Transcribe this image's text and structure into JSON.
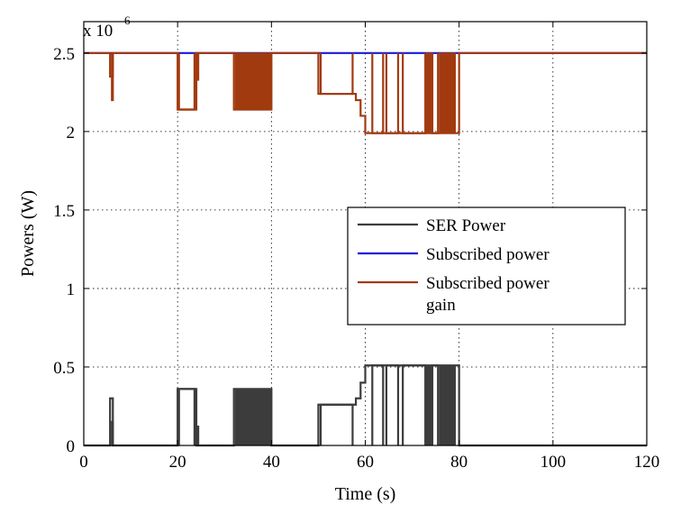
{
  "chart_data": {
    "type": "line",
    "title": "",
    "xlabel": "Time (s)",
    "ylabel": "Powers (W)",
    "y_multiplier": {
      "base": "x 10",
      "exponent": "6"
    },
    "xlim": [
      0,
      120
    ],
    "ylim": [
      0,
      2.7
    ],
    "x_ticks": [
      0,
      20,
      40,
      60,
      80,
      100,
      120
    ],
    "x_tick_labels": [
      "0",
      "20",
      "40",
      "60",
      "80",
      "100",
      "120"
    ],
    "y_ticks": [
      0,
      0.5,
      1,
      1.5,
      2,
      2.5
    ],
    "y_tick_labels": [
      "0",
      "0.5",
      "1",
      "1.5",
      "2",
      "2.5"
    ],
    "grid": true,
    "legend_position": "right-middle",
    "series": [
      {
        "name": "SER Power",
        "color": "#3c3c3c",
        "x": [
          0,
          5.6,
          5.6,
          6.2,
          6.2,
          20,
          20,
          24,
          24,
          32,
          32,
          40,
          40,
          50,
          50,
          56,
          56,
          58,
          58,
          59,
          59,
          60,
          60,
          80,
          80,
          120
        ],
        "y": [
          0,
          0,
          0.3,
          0.3,
          0,
          0,
          0.36,
          0.36,
          0,
          0,
          0.36,
          0.36,
          0,
          0,
          0.26,
          0.26,
          0.26,
          0.26,
          0.3,
          0.3,
          0.4,
          0.4,
          0.51,
          0.51,
          0,
          0
        ],
        "pulses": [
          {
            "x_start": 6.0,
            "x_end": 6.2,
            "high": 0.15
          },
          {
            "x_start": 20.3,
            "x_end": 23.6,
            "high": 0.36
          },
          {
            "x_start": 24.0,
            "x_end": 24.4,
            "high": 0.12
          },
          {
            "x_start": 50.5,
            "x_end": 57.3,
            "high": 0.26
          },
          {
            "x_start": 61.5,
            "x_end": 63.8,
            "high": 0.51
          },
          {
            "x_start": 64.5,
            "x_end": 67.0,
            "high": 0.51
          },
          {
            "x_start": 68.0,
            "x_end": 72.8,
            "high": 0.51
          },
          {
            "x_start": 74.3,
            "x_end": 75.5,
            "high": 0.51
          }
        ],
        "filled_regions": [
          {
            "x_start": 32.3,
            "x_end": 40.0,
            "level": 0.36
          },
          {
            "x_start": 73.0,
            "x_end": 74.3,
            "level": 0.51
          },
          {
            "x_start": 75.8,
            "x_end": 79.2,
            "level": 0.51
          }
        ]
      },
      {
        "name": "Subscribed power",
        "color": "#1a1adc",
        "x": [
          0,
          80,
          80,
          120
        ],
        "y": [
          2.5,
          2.5,
          2.5,
          2.5
        ]
      },
      {
        "name": "Subscribed power gain",
        "color": "#a23a10",
        "x": [
          0,
          5.6,
          5.6,
          6.2,
          6.2,
          20,
          20,
          24,
          24,
          32,
          32,
          40,
          40,
          50,
          50,
          56,
          56,
          58,
          58,
          59,
          59,
          60,
          60,
          80,
          80,
          120
        ],
        "y": [
          2.5,
          2.5,
          2.35,
          2.35,
          2.5,
          2.5,
          2.14,
          2.14,
          2.5,
          2.5,
          2.14,
          2.14,
          2.5,
          2.5,
          2.24,
          2.24,
          2.24,
          2.24,
          2.2,
          2.2,
          2.1,
          2.1,
          1.99,
          1.99,
          2.5,
          2.5
        ],
        "pulses": [
          {
            "x_start": 6.0,
            "x_end": 6.2,
            "low": 2.2
          },
          {
            "x_start": 20.3,
            "x_end": 23.6,
            "low": 2.14
          },
          {
            "x_start": 24.0,
            "x_end": 24.4,
            "low": 2.33
          },
          {
            "x_start": 50.5,
            "x_end": 57.3,
            "low": 2.24
          },
          {
            "x_start": 61.5,
            "x_end": 63.8,
            "low": 1.99
          },
          {
            "x_start": 64.5,
            "x_end": 67.0,
            "low": 1.99
          },
          {
            "x_start": 68.0,
            "x_end": 72.8,
            "low": 1.99
          },
          {
            "x_start": 74.3,
            "x_end": 75.5,
            "low": 1.99
          }
        ],
        "filled_regions": [
          {
            "x_start": 32.3,
            "x_end": 40.0,
            "level": 2.14
          },
          {
            "x_start": 73.0,
            "x_end": 74.3,
            "level": 1.99
          },
          {
            "x_start": 75.8,
            "x_end": 79.2,
            "level": 1.99
          }
        ]
      }
    ],
    "legend_entries": [
      {
        "label": "SER Power",
        "color": "#3c3c3c"
      },
      {
        "label": "Subscribed power",
        "color": "#1a1adc"
      },
      {
        "label": "Subscribed power gain",
        "color": "#a23a10"
      }
    ]
  }
}
